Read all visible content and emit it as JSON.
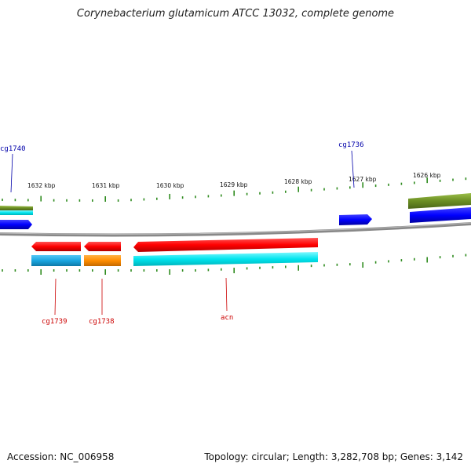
{
  "title": "Corynebacterium glutamicum ATCC 13032, complete genome",
  "footer": {
    "accession": "Accession: NC_006958",
    "summary": "Topology: circular; Length: 3,282,708 bp; Genes: 3,142"
  },
  "ticks": [
    "1632 kbp",
    "1631 kbp",
    "1630 kbp",
    "1629 kbp",
    "1628 kbp",
    "1627 kbp",
    "1626 kbp"
  ],
  "genes": {
    "forward": [
      "cg1740",
      "cg1736"
    ],
    "reverse": [
      "cg1739",
      "cg1738",
      "acn"
    ]
  },
  "colors": {
    "gene_red": "#ff0000",
    "gene_blue": "#0000ff",
    "cds_cyan": "#00e5ee",
    "cds_teal": "#1aa6e0",
    "cds_orange": "#ff8c00",
    "cds_olive": "#6b8e23",
    "backbone": "#888888",
    "tick_green": "#2e8b1e"
  }
}
